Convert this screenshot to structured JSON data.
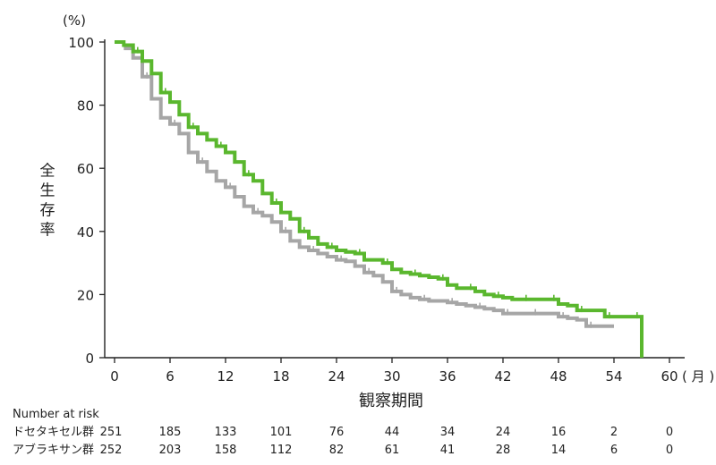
{
  "chart_data": {
    "type": "line",
    "y_unit": "(%)",
    "x_unit": "月",
    "xlabel": "観察期間",
    "ylabel": "全生存率",
    "x_ticks": [
      0,
      6,
      12,
      18,
      24,
      30,
      36,
      42,
      48,
      54,
      60
    ],
    "y_ticks": [
      0,
      20,
      40,
      60,
      80,
      100
    ],
    "xlim": [
      0,
      60
    ],
    "ylim": [
      0,
      100
    ],
    "colors": {
      "green": "#5ab72e",
      "gray": "#a6a6a6",
      "axis": "#222222"
    },
    "series": [
      {
        "name": "アブラキサン群",
        "color": "#5ab72e",
        "points": [
          [
            0,
            100
          ],
          [
            1,
            99
          ],
          [
            2,
            97
          ],
          [
            3,
            94
          ],
          [
            4,
            90
          ],
          [
            5,
            84
          ],
          [
            6,
            81
          ],
          [
            7,
            77
          ],
          [
            8,
            73
          ],
          [
            9,
            71
          ],
          [
            10,
            69
          ],
          [
            11,
            67
          ],
          [
            12,
            65
          ],
          [
            13,
            62
          ],
          [
            14,
            58
          ],
          [
            15,
            56
          ],
          [
            16,
            52
          ],
          [
            17,
            49
          ],
          [
            18,
            46
          ],
          [
            19,
            44
          ],
          [
            20,
            40
          ],
          [
            21,
            38
          ],
          [
            22,
            36
          ],
          [
            23,
            35
          ],
          [
            24,
            34
          ],
          [
            25,
            33.5
          ],
          [
            26,
            33
          ],
          [
            27,
            31
          ],
          [
            28,
            31
          ],
          [
            29,
            30
          ],
          [
            30,
            28
          ],
          [
            31,
            27
          ],
          [
            32,
            26.5
          ],
          [
            33,
            26
          ],
          [
            34,
            25.5
          ],
          [
            35,
            25
          ],
          [
            36,
            23
          ],
          [
            37,
            22
          ],
          [
            38,
            22
          ],
          [
            39,
            21
          ],
          [
            40,
            20
          ],
          [
            41,
            19.5
          ],
          [
            42,
            19
          ],
          [
            43,
            18.5
          ],
          [
            44,
            18.5
          ],
          [
            45,
            18.5
          ],
          [
            46,
            18.5
          ],
          [
            47,
            18.5
          ],
          [
            48,
            17
          ],
          [
            49,
            16.5
          ],
          [
            50,
            15
          ],
          [
            51,
            15
          ],
          [
            52,
            15
          ],
          [
            53,
            13
          ],
          [
            54,
            13
          ],
          [
            55,
            13
          ],
          [
            56,
            13
          ],
          [
            57,
            13
          ],
          [
            57,
            0
          ]
        ]
      },
      {
        "name": "ドセタキセル群",
        "color": "#a6a6a6",
        "points": [
          [
            1,
            98
          ],
          [
            2,
            95
          ],
          [
            3,
            89
          ],
          [
            4,
            82
          ],
          [
            5,
            76
          ],
          [
            6,
            74
          ],
          [
            7,
            71
          ],
          [
            8,
            65
          ],
          [
            9,
            62
          ],
          [
            10,
            59
          ],
          [
            11,
            56
          ],
          [
            12,
            54
          ],
          [
            13,
            51
          ],
          [
            14,
            48
          ],
          [
            15,
            46
          ],
          [
            16,
            45
          ],
          [
            17,
            43
          ],
          [
            18,
            40
          ],
          [
            19,
            37
          ],
          [
            20,
            35
          ],
          [
            21,
            34
          ],
          [
            22,
            33
          ],
          [
            23,
            32
          ],
          [
            24,
            31
          ],
          [
            25,
            30.5
          ],
          [
            26,
            29
          ],
          [
            27,
            27
          ],
          [
            28,
            26
          ],
          [
            29,
            24
          ],
          [
            30,
            21
          ],
          [
            31,
            20
          ],
          [
            32,
            19
          ],
          [
            33,
            18.5
          ],
          [
            34,
            18
          ],
          [
            35,
            18
          ],
          [
            36,
            17.5
          ],
          [
            37,
            17
          ],
          [
            38,
            16.5
          ],
          [
            39,
            16
          ],
          [
            40,
            15.5
          ],
          [
            41,
            15
          ],
          [
            42,
            14
          ],
          [
            43,
            14
          ],
          [
            44,
            14
          ],
          [
            45,
            14
          ],
          [
            46,
            14
          ],
          [
            47,
            14
          ],
          [
            48,
            13
          ],
          [
            49,
            12.5
          ],
          [
            50,
            12
          ],
          [
            51,
            10
          ],
          [
            52,
            10
          ],
          [
            53,
            10
          ],
          [
            54,
            10
          ]
        ]
      }
    ],
    "risk_table": {
      "title": "Number at risk",
      "rows": [
        {
          "label": "ドセタキセル群",
          "values": [
            "251",
            "185",
            "133",
            "101",
            "76",
            "44",
            "34",
            "24",
            "16",
            "2",
            "0"
          ]
        },
        {
          "label": "アブラキサン群",
          "values": [
            "252",
            "203",
            "158",
            "112",
            "82",
            "61",
            "41",
            "28",
            "14",
            "6",
            "0"
          ]
        }
      ]
    }
  }
}
